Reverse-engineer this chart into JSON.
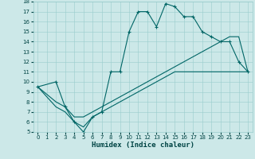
{
  "xlabel": "Humidex (Indice chaleur)",
  "bg_color": "#cce8e8",
  "line_color": "#006666",
  "xlim": [
    -0.5,
    23.5
  ],
  "ylim": [
    5,
    18
  ],
  "xticks": [
    0,
    1,
    2,
    3,
    4,
    5,
    6,
    7,
    8,
    9,
    10,
    11,
    12,
    13,
    14,
    15,
    16,
    17,
    18,
    19,
    20,
    21,
    22,
    23
  ],
  "yticks": [
    5,
    6,
    7,
    8,
    9,
    10,
    11,
    12,
    13,
    14,
    15,
    16,
    17,
    18
  ],
  "line1_x": [
    0,
    2,
    3,
    4,
    5,
    6,
    7,
    8,
    9,
    10,
    11,
    12,
    13,
    14,
    15,
    16,
    17,
    18,
    19,
    20,
    21,
    22,
    23
  ],
  "line1_y": [
    9.5,
    10,
    7.5,
    6,
    5,
    6.5,
    7,
    11,
    11,
    15,
    17,
    17,
    15.5,
    17.8,
    17.5,
    16.5,
    16.5,
    15,
    14.5,
    14,
    14,
    12,
    11
  ],
  "line2_x": [
    0,
    2,
    3,
    4,
    5,
    6,
    7,
    8,
    9,
    10,
    11,
    12,
    13,
    14,
    15,
    16,
    17,
    18,
    19,
    20,
    21,
    22,
    23
  ],
  "line2_y": [
    9.5,
    8,
    7.5,
    6.5,
    6.5,
    7,
    7.5,
    8,
    8.5,
    9,
    9.5,
    10,
    10.5,
    11,
    11.5,
    12,
    12.5,
    13,
    13.5,
    14,
    14.5,
    14.5,
    11
  ],
  "line3_x": [
    0,
    2,
    3,
    4,
    5,
    6,
    7,
    8,
    9,
    10,
    11,
    12,
    13,
    14,
    15,
    16,
    17,
    18,
    19,
    20,
    21,
    22,
    23
  ],
  "line3_y": [
    9.5,
    7.5,
    7,
    6,
    5.5,
    6.5,
    7,
    7.5,
    8,
    8.5,
    9,
    9.5,
    10,
    10.5,
    11,
    11,
    11,
    11,
    11,
    11,
    11,
    11,
    11
  ]
}
